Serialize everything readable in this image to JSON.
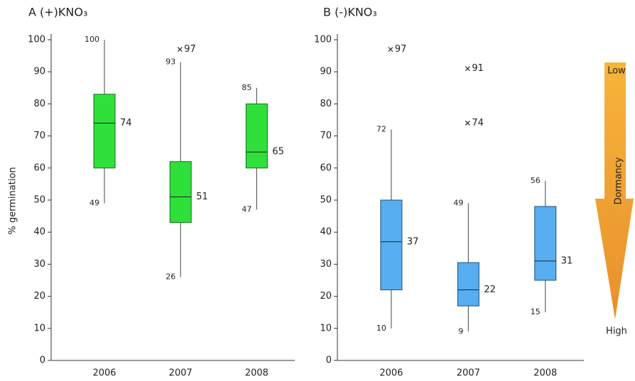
{
  "chart_data": [
    {
      "type": "box",
      "title": "A (+)KNO₃",
      "ylabel": "% germination",
      "categories": [
        "2006",
        "2007",
        "2008"
      ],
      "color": "#2fe03a",
      "edge": "#1a6b1f",
      "ylim": [
        0,
        100
      ],
      "yticks": [
        0,
        10,
        20,
        30,
        40,
        50,
        60,
        70,
        80,
        90,
        100
      ],
      "boxes": [
        {
          "whisker_high": 100,
          "q3": 83,
          "median": 74,
          "q1": 60,
          "whisker_low": 49,
          "outliers": []
        },
        {
          "whisker_high": 93,
          "q3": 62,
          "median": 51,
          "q1": 43,
          "whisker_low": 26,
          "outliers": [
            97
          ]
        },
        {
          "whisker_high": 85,
          "q3": 80,
          "median": 65,
          "q1": 60,
          "whisker_low": 47,
          "outliers": []
        }
      ]
    },
    {
      "type": "box",
      "title": "B (-)KNO₃",
      "categories": [
        "2006",
        "2007",
        "2008"
      ],
      "color": "#56aef0",
      "edge": "#1d4f78",
      "ylim": [
        0,
        100
      ],
      "yticks": [
        0,
        10,
        20,
        30,
        40,
        50,
        60,
        70,
        80,
        90,
        100
      ],
      "boxes": [
        {
          "whisker_high": 72,
          "q3": 50,
          "median": 37,
          "q1": 22,
          "whisker_low": 10,
          "outliers": [
            97
          ]
        },
        {
          "whisker_high": 49,
          "q3": 30.5,
          "median": 22,
          "q1": 17,
          "whisker_low": 9,
          "outliers": [
            91,
            74
          ]
        },
        {
          "whisker_high": 56,
          "q3": 48,
          "median": 31,
          "q1": 25,
          "whisker_low": 15,
          "outliers": []
        }
      ]
    }
  ],
  "dormancy_arrow": {
    "top": "Low",
    "label": "Dormancy",
    "bottom": "High"
  }
}
